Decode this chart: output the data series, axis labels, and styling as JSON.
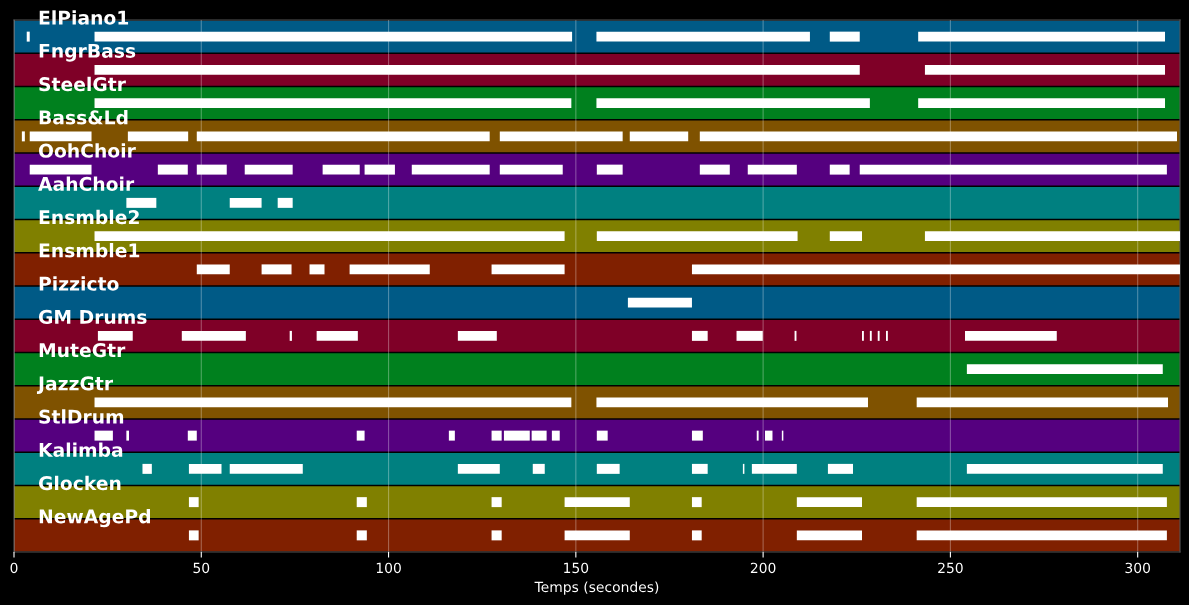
{
  "chart_data": {
    "type": "bar",
    "orientation": "horizontal",
    "categories": [
      "ElPiano1",
      "FngrBass",
      "SteelGtr",
      "Bass&Ld",
      "OohChoir",
      "AahChoir",
      "Ensmble2",
      "Ensmble1",
      "Pizzicto",
      "GM Drums",
      "MuteGtr",
      "JazzGtr",
      "StlDrum",
      "Kalimba",
      "Glocken",
      "NewAgePd"
    ],
    "xlabel": "Temps (secondes)",
    "xlim": [
      0,
      311.3
    ],
    "xticks": [
      0,
      50,
      100,
      150,
      200,
      250,
      300
    ],
    "grid": "x",
    "bands": [
      {
        "axis": "y",
        "from": "ElPiano1",
        "to": "ElPiano1",
        "color": "#005a86"
      },
      {
        "axis": "y",
        "from": "FngrBass",
        "to": "FngrBass",
        "color": "#7f0027"
      },
      {
        "axis": "y",
        "from": "SteelGtr",
        "to": "SteelGtr",
        "color": "#00801e"
      },
      {
        "axis": "y",
        "from": "Bass&Ld",
        "to": "Bass&Ld",
        "color": "#7f5200"
      },
      {
        "axis": "y",
        "from": "OohChoir",
        "to": "OohChoir",
        "color": "#55007f"
      },
      {
        "axis": "y",
        "from": "AahChoir",
        "to": "AahChoir",
        "color": "#008080"
      },
      {
        "axis": "y",
        "from": "Ensmble2",
        "to": "Ensmble2",
        "color": "#808000"
      },
      {
        "axis": "y",
        "from": "Ensmble1",
        "to": "Ensmble1",
        "color": "#802000"
      },
      {
        "axis": "y",
        "from": "Pizzicto",
        "to": "Pizzicto",
        "color": "#005a86"
      },
      {
        "axis": "y",
        "from": "GM Drums",
        "to": "GM Drums",
        "color": "#7f0027"
      },
      {
        "axis": "y",
        "from": "MuteGtr",
        "to": "MuteGtr",
        "color": "#00801e"
      },
      {
        "axis": "y",
        "from": "JazzGtr",
        "to": "JazzGtr",
        "color": "#7f5200"
      },
      {
        "axis": "y",
        "from": "StlDrum",
        "to": "StlDrum",
        "color": "#55007f"
      },
      {
        "axis": "y",
        "from": "Kalimba",
        "to": "Kalimba",
        "color": "#008080"
      },
      {
        "axis": "y",
        "from": "Glocken",
        "to": "Glocken",
        "color": "#808000"
      },
      {
        "axis": "y",
        "from": "NewAgePd",
        "to": "NewAgePd",
        "color": "#802000"
      }
    ],
    "series": [
      {
        "color": "#ffffff",
        "base": [
          3.4,
          21.5,
          21.5,
          2.1,
          4.2,
          30,
          21.5,
          48.8,
          163.9,
          22.4,
          254.4,
          21.5,
          21.5,
          34.3,
          46.7,
          46.7
        ],
        "values": [
          0.8,
          204.3,
          127.3,
          0.8,
          16.5,
          8,
          125.5,
          8.8,
          17.1,
          9.3,
          52.3,
          127.3,
          4.9,
          2.5,
          2.6,
          2.6
        ]
      },
      {
        "color": "#ffffff",
        "base": [
          21.5,
          243.2,
          155.5,
          4.2,
          38.4,
          57.6,
          155.6,
          66.1,
          null,
          44.8,
          null,
          155.5,
          30,
          46.7,
          91.5,
          91.5
        ],
        "values": [
          127.5,
          64.1,
          73,
          16.5,
          8,
          8.5,
          53.6,
          8,
          null,
          17.1,
          null,
          72.5,
          0.7,
          8.7,
          2.7,
          2.7
        ]
      },
      {
        "color": "#ffffff",
        "base": [
          155.5,
          null,
          241.4,
          30.4,
          48.8,
          70.4,
          217.8,
          78.9,
          null,
          73.6,
          null,
          241,
          46.4,
          57.6,
          127.5,
          127.5
        ],
        "values": [
          57,
          null,
          65.9,
          16.1,
          8,
          4,
          8.6,
          4,
          null,
          0.6,
          null,
          67.1,
          2.4,
          19.5,
          2.7,
          2.7
        ]
      },
      {
        "color": "#ffffff",
        "base": [
          217.8,
          null,
          null,
          48.8,
          61.6,
          null,
          243.2,
          89.6,
          null,
          80.8,
          null,
          null,
          91.5,
          118.5,
          147,
          147
        ],
        "values": [
          8,
          null,
          null,
          78.2,
          12.8,
          null,
          68.1,
          21.4,
          null,
          11,
          null,
          null,
          2.1,
          11.2,
          17.4,
          17.4
        ]
      },
      {
        "color": "#ffffff",
        "base": [
          241.4,
          null,
          null,
          129.7,
          82.4,
          null,
          null,
          127.5,
          null,
          118.5,
          null,
          null,
          116.1,
          138.5,
          181,
          181
        ],
        "values": [
          65.9,
          null,
          null,
          32.8,
          9.9,
          null,
          null,
          19.5,
          null,
          10.4,
          null,
          null,
          1.6,
          3.2,
          2.6,
          2.6
        ]
      },
      {
        "color": "#ffffff",
        "base": [
          null,
          null,
          null,
          164.4,
          93.6,
          null,
          null,
          181,
          null,
          181,
          null,
          null,
          127.5,
          155.6,
          209,
          209
        ],
        "values": [
          null,
          null,
          null,
          15.6,
          8.1,
          null,
          null,
          130.3,
          null,
          4.2,
          null,
          null,
          2.7,
          6.1,
          17.4,
          17.4
        ]
      },
      {
        "color": "#ffffff",
        "base": [
          null,
          null,
          null,
          183.1,
          106.2,
          null,
          null,
          null,
          null,
          192.9,
          null,
          null,
          130.8,
          181,
          241,
          241
        ],
        "values": [
          null,
          null,
          null,
          127.4,
          20.8,
          null,
          null,
          null,
          null,
          7,
          null,
          null,
          6.9,
          4.2,
          66.8,
          66.8
        ]
      },
      {
        "color": "#ffffff",
        "base": [
          null,
          null,
          null,
          null,
          129.7,
          null,
          null,
          null,
          null,
          208.4,
          null,
          null,
          138.2,
          194.6,
          null,
          null
        ],
        "values": [
          null,
          null,
          null,
          null,
          16.8,
          null,
          null,
          null,
          null,
          0.5,
          null,
          null,
          4,
          0.4,
          null,
          null
        ]
      },
      {
        "color": "#ffffff",
        "base": [
          null,
          null,
          null,
          null,
          155.6,
          null,
          null,
          null,
          null,
          226.4,
          null,
          null,
          143.6,
          197,
          null,
          null
        ],
        "values": [
          null,
          null,
          null,
          null,
          6.9,
          null,
          null,
          null,
          null,
          0.5,
          null,
          null,
          2.1,
          12,
          null,
          null
        ]
      },
      {
        "color": "#ffffff",
        "base": [
          null,
          null,
          null,
          null,
          183.1,
          null,
          null,
          null,
          null,
          228.5,
          null,
          null,
          155.6,
          217.3,
          null,
          null
        ],
        "values": [
          null,
          null,
          null,
          null,
          8,
          null,
          null,
          null,
          null,
          0.5,
          null,
          null,
          2.9,
          6.7,
          null,
          null
        ]
      },
      {
        "color": "#ffffff",
        "base": [
          null,
          null,
          null,
          null,
          195.9,
          null,
          null,
          null,
          null,
          230.6,
          null,
          null,
          181,
          254.4,
          null,
          null
        ],
        "values": [
          null,
          null,
          null,
          null,
          13.1,
          null,
          null,
          null,
          null,
          0.5,
          null,
          null,
          2.9,
          52.3,
          null,
          null
        ]
      },
      {
        "color": "#ffffff",
        "base": [
          null,
          null,
          null,
          null,
          217.8,
          null,
          null,
          null,
          null,
          232.8,
          null,
          null,
          198.3,
          null,
          null,
          null
        ],
        "values": [
          null,
          null,
          null,
          null,
          5.3,
          null,
          null,
          null,
          null,
          0.5,
          null,
          null,
          0.5,
          null,
          null,
          null
        ]
      },
      {
        "color": "#ffffff",
        "base": [
          null,
          null,
          null,
          null,
          225.8,
          null,
          null,
          null,
          null,
          253.9,
          null,
          null,
          200.5,
          null,
          null,
          null
        ],
        "values": [
          null,
          null,
          null,
          null,
          82,
          null,
          null,
          null,
          null,
          24.5,
          null,
          null,
          2,
          null,
          null,
          null
        ]
      },
      {
        "color": "#ffffff",
        "base": [
          null,
          null,
          null,
          null,
          null,
          null,
          null,
          null,
          null,
          null,
          null,
          null,
          205,
          null,
          null,
          null
        ],
        "values": [
          null,
          null,
          null,
          null,
          null,
          null,
          null,
          null,
          null,
          null,
          null,
          null,
          0.4,
          null,
          null,
          null
        ]
      }
    ]
  }
}
